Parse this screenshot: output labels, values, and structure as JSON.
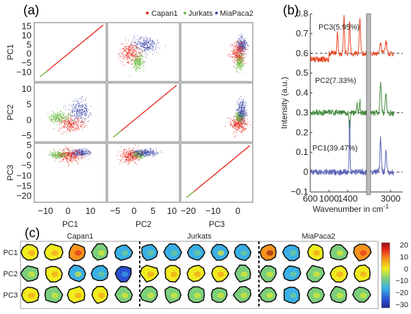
{
  "panels": {
    "a": {
      "label": "(a)"
    },
    "b": {
      "label": "(b)"
    },
    "c": {
      "label": "(c)"
    }
  },
  "chart_data": [
    {
      "id": "a",
      "type": "scatter",
      "title": "",
      "legend": {
        "placement": "top-right",
        "entries": [
          {
            "name": "Capan1",
            "color": "#e8261b"
          },
          {
            "name": "Jurkats",
            "color": "#6cc04a"
          },
          {
            "name": "MiaPaca2",
            "color": "#3a47a8"
          }
        ]
      },
      "variables": [
        "PC1",
        "PC2",
        "PC3"
      ],
      "axes": {
        "PC1": {
          "range": [
            -15,
            17
          ],
          "ticks": [
            -10,
            0,
            10
          ],
          "ytick_labels": [
            "15",
            "10",
            "5",
            "0",
            "−5",
            "−10"
          ],
          "yticks": [
            15,
            10,
            5,
            0,
            -5,
            -10
          ]
        },
        "PC2": {
          "range": [
            -7,
            12
          ],
          "ticks": [
            -5,
            0,
            5,
            10
          ],
          "yticks": [
            10,
            5,
            0,
            -5
          ]
        },
        "PC3": {
          "range": [
            -23,
            6
          ],
          "ticks": [
            -20,
            -10,
            0
          ],
          "yticks": [
            5,
            0,
            -5,
            -10,
            -15,
            -20
          ]
        }
      },
      "xlabels": [
        "PC1",
        "PC2",
        "PC3"
      ],
      "ylabels": [
        "PC1",
        "PC2",
        "PC3"
      ],
      "clusters": {
        "Capan1": {
          "PC1": [
            -1,
            4
          ],
          "PC2": [
            -1.5,
            2
          ],
          "PC3": [
            -0.5,
            2.5
          ]
        },
        "Jurkats": {
          "PC1": [
            -5,
            3
          ],
          "PC2": [
            0.5,
            2
          ],
          "PC3": [
            0.5,
            2
          ]
        },
        "MiaPaca2": {
          "PC1": [
            4,
            5
          ],
          "PC2": [
            3,
            3.5
          ],
          "PC3": [
            1,
            2
          ]
        }
      }
    },
    {
      "id": "b",
      "type": "line",
      "xlabel": "Wavenumber in cm",
      "xlabel_sup": "-1",
      "ylabel": "Intensity (a.u.)",
      "ylim": [
        -0.1,
        0.8
      ],
      "yticks": [
        -0.1,
        0,
        0.1,
        0.2,
        0.3,
        0.4,
        0.5,
        0.6,
        0.7,
        0.8
      ],
      "ytick_labels": [
        "−0.1",
        "0",
        "0.1",
        "0.2",
        "0.3",
        "0.4",
        "0.5",
        "0.6",
        "0.7",
        "0.8"
      ],
      "xtick_labels": [
        "600",
        "1000",
        "1400",
        "3000"
      ],
      "xticks": [
        600,
        1000,
        1400,
        3000
      ],
      "axis_break": "1800-2700",
      "series": [
        {
          "name": "PC3(5.95%)",
          "color": "#e8401e",
          "baseline": 0.6
        },
        {
          "name": "PC2(7.33%)",
          "color": "#3f8a3a",
          "baseline": 0.3
        },
        {
          "name": "PC1(39.47%)",
          "color": "#5a62b8",
          "baseline": 0.0
        }
      ]
    },
    {
      "id": "c",
      "type": "heatmap",
      "rows": [
        "PC1",
        "PC2",
        "PC3"
      ],
      "groups": [
        {
          "name": "Capan1",
          "cells": 5
        },
        {
          "name": "Jurkats",
          "cells": 5
        },
        {
          "name": "MiaPaca2",
          "cells": 5
        }
      ],
      "colorbar": {
        "range": [
          -30,
          20
        ],
        "ticks": [
          "20",
          "10",
          "0",
          "−10",
          "−20",
          "−30"
        ]
      },
      "cell_dominant_values": [
        [
          3,
          6,
          8,
          -3,
          -10,
          -12,
          -14,
          -12,
          -8,
          -14,
          14,
          -10,
          2,
          -4,
          8
        ],
        [
          -2,
          2,
          -8,
          -12,
          -16,
          0,
          4,
          0,
          4,
          -6,
          -2,
          -14,
          -4,
          4,
          4
        ],
        [
          0,
          -2,
          2,
          0,
          -2,
          -2,
          -2,
          -2,
          -2,
          -1,
          -2,
          -10,
          -2,
          -2,
          -2
        ]
      ]
    }
  ]
}
